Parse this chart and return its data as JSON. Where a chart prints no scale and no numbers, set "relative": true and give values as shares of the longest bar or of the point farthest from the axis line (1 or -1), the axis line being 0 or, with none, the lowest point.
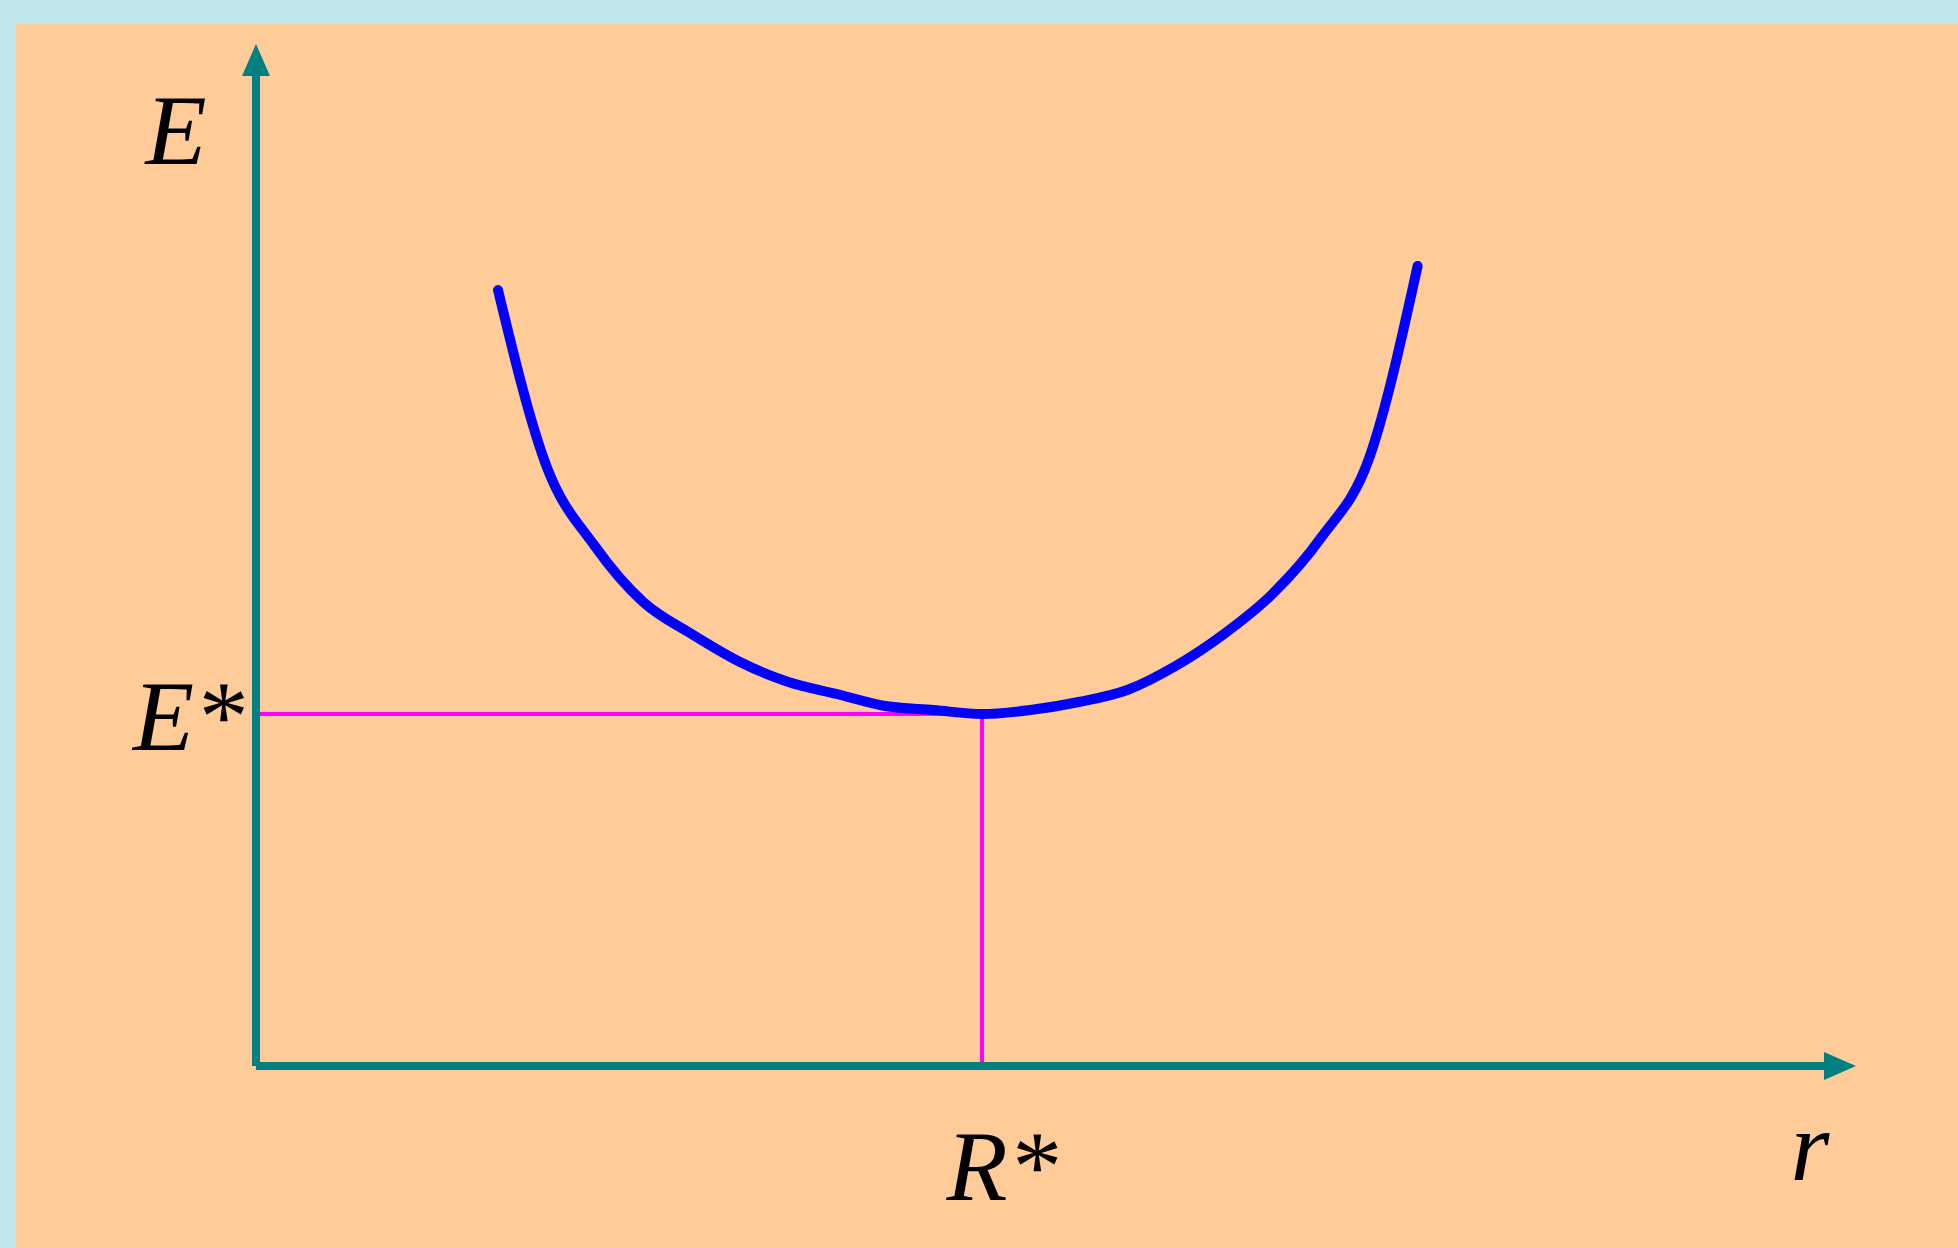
{
  "chart_data": {
    "type": "line",
    "xlabel": "r",
    "ylabel": "E",
    "relative": true,
    "color": "#0000ff",
    "categories": [
      null,
      null,
      null,
      null,
      null,
      null,
      null,
      null,
      null,
      null,
      null,
      null,
      null,
      null,
      null,
      null,
      null,
      null,
      null,
      null,
      null,
      null,
      null,
      null,
      null,
      null,
      null,
      null,
      null,
      null,
      null,
      null,
      null
    ],
    "values": [
      null,
      null,
      null,
      null,
      null,
      0.97,
      0.75,
      0.65,
      0.58,
      0.54,
      0.505,
      0.48,
      0.465,
      0.45,
      0.445,
      0.44,
      0.445,
      0.455,
      0.47,
      0.5,
      0.54,
      0.59,
      0.66,
      0.76,
      1.0,
      null,
      null,
      null,
      null,
      null,
      null,
      null,
      null
    ],
    "ref_lines": [
      {
        "axis": "y",
        "value": 0.44,
        "label": "E*",
        "color": "#ff00ff"
      }
    ],
    "annotations": [
      "R*"
    ]
  }
}
